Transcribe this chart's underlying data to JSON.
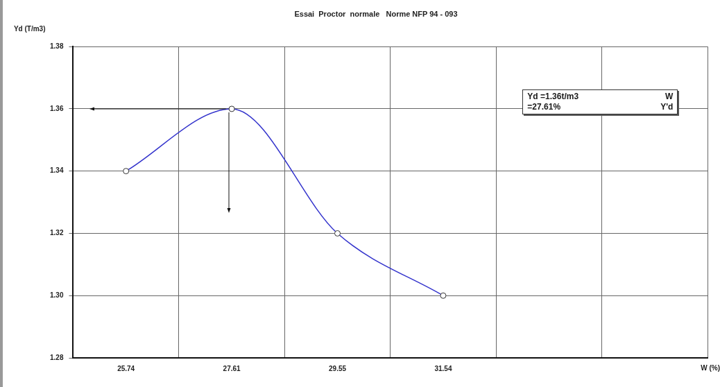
{
  "chart_data": {
    "type": "line",
    "title": "Essai  Proctor  normale   Norme NFP 94 - 093",
    "xlabel": "W (%)",
    "ylabel": "Yd (T/m3)",
    "categories": [
      "25.74",
      "27.61",
      "29.55",
      "31.54",
      null,
      null
    ],
    "values": [
      1.34,
      1.36,
      1.32,
      1.3,
      null,
      null
    ],
    "color": "#3333cc",
    "ylim": [
      1.28,
      1.38
    ],
    "yticks": [
      1.28,
      {
        "value": 1.3,
        "label": "1.30"
      },
      1.32,
      1.34,
      1.36,
      1.38
    ],
    "grid": true,
    "legend": false,
    "marker": "circle",
    "line_style": "solid",
    "annotations": [
      "Yd =1.36t/m3",
      "W",
      "=27.61%",
      "Y'd"
    ]
  }
}
